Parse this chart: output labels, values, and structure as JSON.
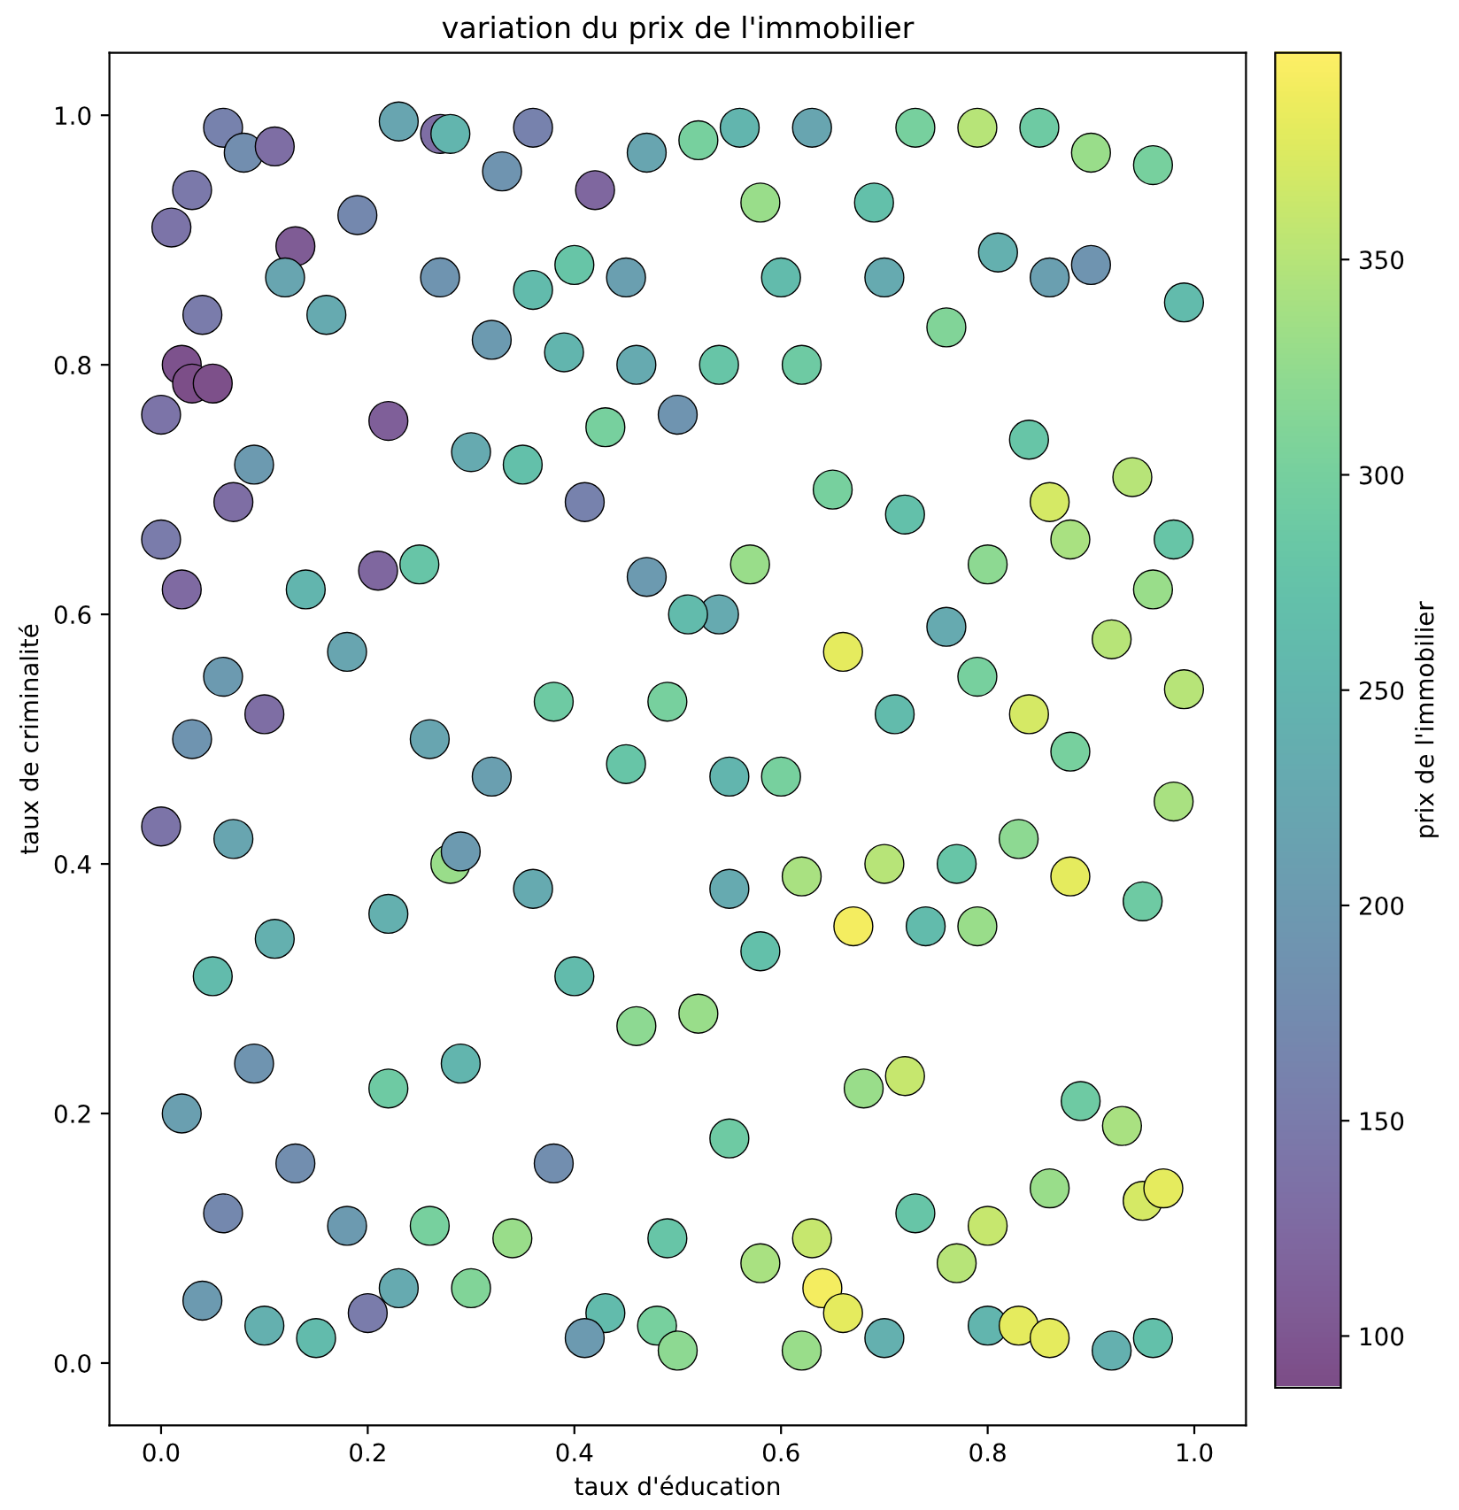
{
  "chart_data": {
    "type": "scatter",
    "title": "variation du prix de l'immobilier",
    "xlabel": "taux d'éducation",
    "ylabel": "taux de criminalité",
    "clabel": "prix de l'immobilier",
    "marker": "circle",
    "xlim": [
      -0.05,
      1.05
    ],
    "ylim": [
      -0.05,
      1.05
    ],
    "xticks": [
      {
        "value": 0,
        "label": "0.0"
      },
      0.2,
      0.4,
      0.6,
      0.8,
      {
        "value": 1,
        "label": "1.0"
      }
    ],
    "yticks": [
      {
        "value": 0,
        "label": "0.0"
      },
      0.2,
      0.4,
      0.6,
      0.8,
      {
        "value": 1,
        "label": "1.0"
      }
    ],
    "clim": [
      88,
      398
    ],
    "cticks": [
      100,
      150,
      200,
      250,
      300,
      350
    ],
    "x": [
      0.01,
      0.03,
      0.06,
      0.08,
      0.11,
      0.02,
      0.03,
      0.05,
      0.0,
      0.13,
      0.22,
      0.21,
      0.02,
      0.0,
      0.07,
      0.09,
      0.04,
      0.12,
      0.16,
      0.19,
      0.23,
      0.27,
      0.28,
      0.36,
      0.33,
      0.42,
      0.47,
      0.27,
      0.32,
      0.36,
      0.45,
      0.4,
      0.3,
      0.35,
      0.41,
      0.25,
      0.18,
      0.14,
      0.1,
      0.06,
      0.03,
      0.0,
      0.07,
      0.11,
      0.05,
      0.09,
      0.02,
      0.13,
      0.06,
      0.04,
      0.1,
      0.15,
      0.2,
      0.23,
      0.18,
      0.26,
      0.22,
      0.3,
      0.34,
      0.29,
      0.28,
      0.29,
      0.22,
      0.36,
      0.4,
      0.38,
      0.43,
      0.41,
      0.48,
      0.5,
      0.49,
      0.46,
      0.52,
      0.55,
      0.58,
      0.63,
      0.64,
      0.66,
      0.62,
      0.7,
      0.73,
      0.77,
      0.8,
      0.83,
      0.86,
      0.92,
      0.96,
      0.95,
      0.97,
      0.93,
      0.89,
      0.86,
      0.8,
      0.72,
      0.68,
      0.74,
      0.67,
      0.7,
      0.77,
      0.83,
      0.88,
      0.84,
      0.88,
      0.95,
      0.98,
      0.99,
      0.96,
      0.98,
      0.94,
      0.99,
      0.96,
      0.9,
      0.85,
      0.79,
      0.73,
      0.69,
      0.63,
      0.56,
      0.52,
      0.58,
      0.6,
      0.62,
      0.7,
      0.76,
      0.81,
      0.86,
      0.9,
      0.84,
      0.86,
      0.88,
      0.8,
      0.76,
      0.72,
      0.65,
      0.57,
      0.54,
      0.51,
      0.47,
      0.49,
      0.45,
      0.55,
      0.6,
      0.62,
      0.58,
      0.55,
      0.66,
      0.71,
      0.79,
      0.92,
      0.79,
      0.54,
      0.5,
      0.46,
      0.43,
      0.39,
      0.38,
      0.32,
      0.26
    ],
    "values": [
      0.91,
      0.94,
      0.99,
      0.97,
      0.975,
      0.8,
      0.785,
      0.785,
      0.76,
      0.895,
      0.755,
      0.635,
      0.62,
      0.66,
      0.69,
      0.72,
      0.84,
      0.87,
      0.84,
      0.92,
      0.995,
      0.985,
      0.985,
      0.99,
      0.955,
      0.94,
      0.97,
      0.87,
      0.82,
      0.86,
      0.87,
      0.88,
      0.73,
      0.72,
      0.69,
      0.64,
      0.57,
      0.62,
      0.52,
      0.55,
      0.5,
      0.43,
      0.42,
      0.34,
      0.31,
      0.24,
      0.2,
      0.16,
      0.12,
      0.05,
      0.03,
      0.02,
      0.04,
      0.06,
      0.11,
      0.11,
      0.22,
      0.06,
      0.1,
      0.24,
      0.4,
      0.41,
      0.36,
      0.38,
      0.31,
      0.16,
      0.04,
      0.02,
      0.03,
      0.01,
      0.1,
      0.27,
      0.28,
      0.18,
      0.08,
      0.1,
      0.06,
      0.04,
      0.01,
      0.02,
      0.12,
      0.08,
      0.03,
      0.03,
      0.02,
      0.01,
      0.02,
      0.13,
      0.14,
      0.19,
      0.21,
      0.14,
      0.11,
      0.23,
      0.22,
      0.35,
      0.35,
      0.4,
      0.4,
      0.42,
      0.49,
      0.52,
      0.39,
      0.37,
      0.45,
      0.54,
      0.62,
      0.66,
      0.71,
      0.85,
      0.96,
      0.97,
      0.99,
      0.99,
      0.99,
      0.93,
      0.99,
      0.99,
      0.98,
      0.93,
      0.87,
      0.8,
      0.87,
      0.83,
      0.89,
      0.87,
      0.88,
      0.74,
      0.69,
      0.66,
      0.64,
      0.59,
      0.68,
      0.7,
      0.64,
      0.6,
      0.6,
      0.63,
      0.53,
      0.48,
      0.47,
      0.47,
      0.39,
      0.33,
      0.38,
      0.57,
      0.52,
      0.55,
      0.58,
      0.35,
      0.8,
      0.76,
      0.8,
      0.75,
      0.81,
      0.53,
      0.47,
      0.5
    ],
    "cvalues": [
      140,
      145,
      160,
      180,
      130,
      95,
      90,
      92,
      140,
      105,
      110,
      120,
      125,
      150,
      130,
      200,
      150,
      220,
      230,
      170,
      220,
      130,
      250,
      160,
      190,
      120,
      220,
      190,
      200,
      260,
      210,
      280,
      230,
      270,
      160,
      280,
      220,
      250,
      130,
      200,
      190,
      140,
      220,
      240,
      260,
      190,
      210,
      180,
      170,
      200,
      240,
      260,
      150,
      230,
      200,
      300,
      290,
      310,
      330,
      250,
      330,
      200,
      240,
      230,
      260,
      180,
      260,
      200,
      300,
      320,
      280,
      320,
      330,
      290,
      340,
      360,
      390,
      380,
      330,
      240,
      280,
      350,
      250,
      380,
      380,
      240,
      270,
      370,
      380,
      340,
      290,
      330,
      360,
      360,
      330,
      260,
      390,
      350,
      280,
      320,
      300,
      370,
      380,
      290,
      340,
      350,
      330,
      280,
      350,
      260,
      300,
      330,
      290,
      350,
      300,
      270,
      220,
      250,
      300,
      330,
      260,
      290,
      230,
      310,
      240,
      210,
      190,
      280,
      370,
      340,
      320,
      230,
      270,
      300,
      330,
      230,
      260,
      200,
      300,
      280,
      250,
      300,
      340,
      270,
      230,
      380,
      260,
      300,
      350,
      330,
      280,
      190,
      230,
      300,
      250,
      290,
      210,
      220
    ]
  }
}
